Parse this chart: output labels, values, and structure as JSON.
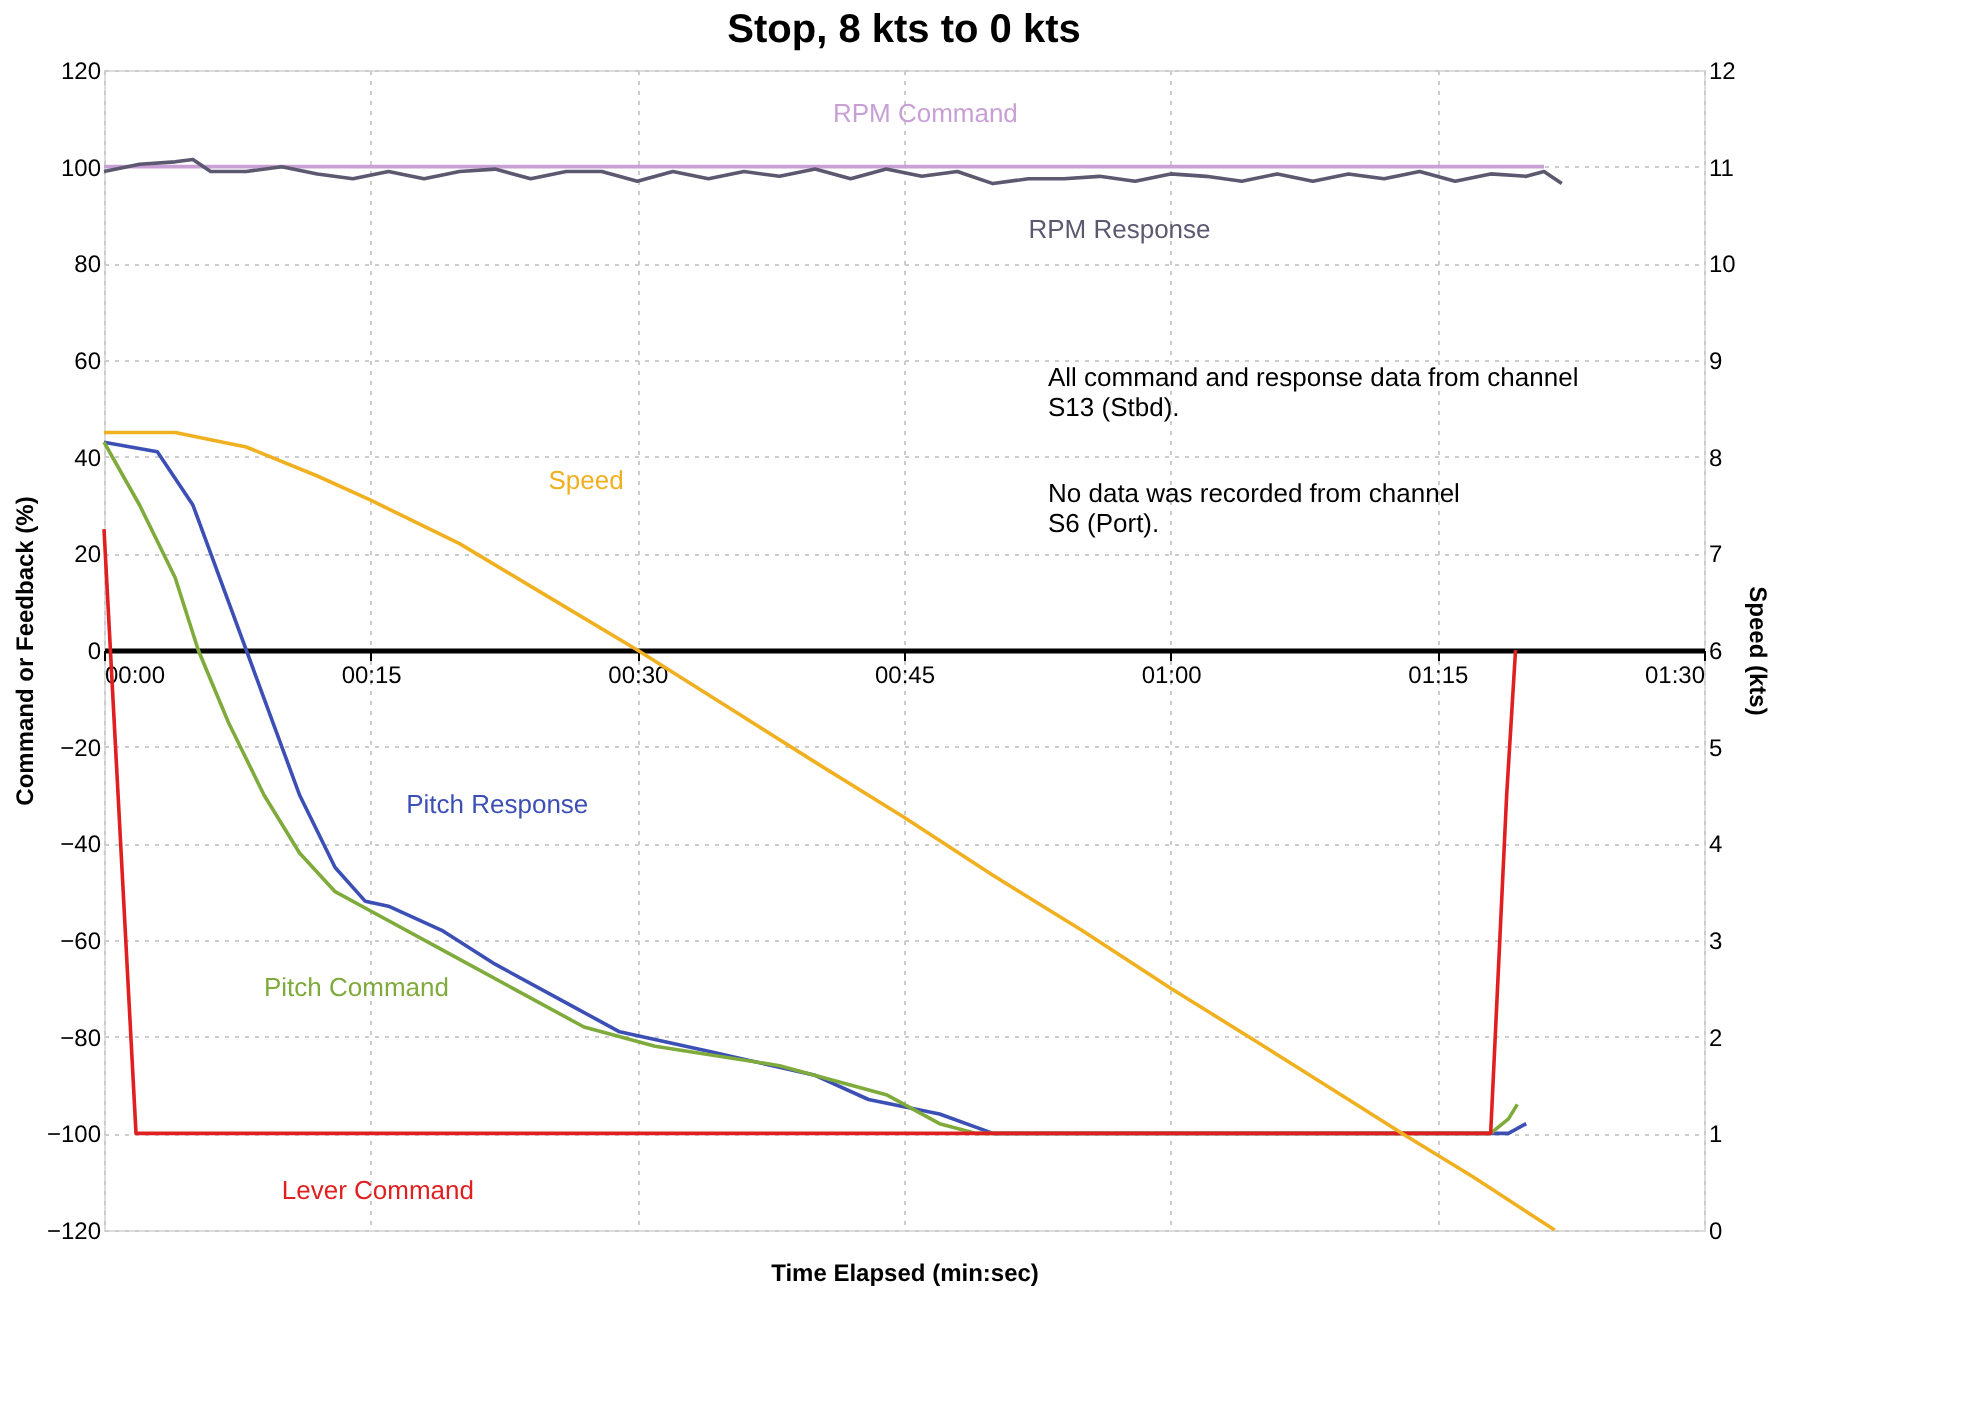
{
  "chart_data": {
    "type": "line",
    "title": "Stop, 8 kts to 0 kts",
    "xlabel": "Time Elapsed (min:sec)",
    "ylabel": "Command or Feedback (%)",
    "y2label": "Speed (kts)",
    "xlim": [
      0,
      90
    ],
    "xticks": [
      {
        "value": 0,
        "label": "00:00"
      },
      {
        "value": 15,
        "label": "00:15"
      },
      {
        "value": 30,
        "label": "00:30"
      },
      {
        "value": 45,
        "label": "00:45"
      },
      {
        "value": 60,
        "label": "01:00"
      },
      {
        "value": 75,
        "label": "01:15"
      },
      {
        "value": 90,
        "label": "01:30"
      }
    ],
    "ylim": [
      -120,
      120
    ],
    "yticks": [
      -120,
      -100,
      -80,
      -60,
      -40,
      -20,
      0,
      20,
      40,
      60,
      80,
      100,
      120
    ],
    "y2lim": [
      0,
      12
    ],
    "y2ticks": [
      0,
      1,
      2,
      3,
      4,
      5,
      6,
      7,
      8,
      9,
      10,
      11,
      12
    ],
    "grid": true,
    "legend": false,
    "marker": "none",
    "line_style": "solid",
    "annotations": [
      "All command and response data from channel\nS13 (Stbd).",
      "No data was recorded from channel\nS6 (Port)."
    ],
    "series": [
      {
        "name": "RPM Command",
        "color": "#c9a0d6",
        "x": [
          0,
          81
        ],
        "values": [
          100,
          100
        ]
      },
      {
        "name": "RPM Response",
        "color": "#5c5870",
        "x": [
          0,
          2,
          4,
          5,
          6,
          8,
          10,
          12,
          14,
          16,
          18,
          20,
          22,
          24,
          26,
          28,
          30,
          32,
          34,
          36,
          38,
          40,
          42,
          44,
          46,
          48,
          50,
          52,
          54,
          56,
          58,
          60,
          62,
          64,
          66,
          68,
          70,
          72,
          74,
          76,
          78,
          80,
          81,
          82
        ],
        "values": [
          99,
          100.5,
          101,
          101.5,
          99,
          99,
          100,
          98.5,
          97.5,
          99,
          97.5,
          99,
          99.5,
          97.5,
          99,
          99,
          97,
          99,
          97.5,
          99,
          98,
          99.5,
          97.5,
          99.5,
          98,
          99,
          96.5,
          97.5,
          97.5,
          98,
          97,
          98.5,
          98,
          97,
          98.5,
          97,
          98.5,
          97.5,
          99,
          97,
          98.5,
          98,
          99,
          96.5
        ]
      },
      {
        "name": "Speed",
        "color": "#f0b020",
        "axis": "y2",
        "x": [
          0,
          4,
          8,
          12,
          15,
          20,
          25,
          30,
          35,
          40,
          45,
          50,
          55,
          60,
          65,
          70,
          73,
          77,
          81.6
        ],
        "values": [
          8.25,
          8.25,
          8.1,
          7.8,
          7.55,
          7.1,
          6.55,
          6.0,
          5.42,
          4.84,
          4.27,
          3.67,
          3.1,
          2.5,
          1.93,
          1.35,
          1.0,
          0.55,
          0
        ]
      },
      {
        "name": "Pitch Response",
        "color": "#3c4fb5",
        "x": [
          0,
          3,
          5,
          7,
          9,
          11,
          13,
          14.7,
          16,
          19,
          22,
          26,
          29,
          34,
          40,
          43,
          47,
          50,
          79,
          80
        ],
        "values": [
          43,
          41,
          30,
          10,
          -10,
          -30,
          -45,
          -52,
          -53,
          -58,
          -65,
          -73,
          -79,
          -83,
          -88,
          -93,
          -96,
          -100,
          -100,
          -98
        ]
      },
      {
        "name": "Pitch Command",
        "color": "#7faa3c",
        "x": [
          0,
          2,
          4,
          5.3,
          7,
          9,
          11,
          13,
          15,
          19,
          23,
          27,
          31,
          38,
          44,
          47,
          49,
          78,
          79,
          79.5
        ],
        "values": [
          43,
          30,
          15,
          0,
          -15,
          -30,
          -42,
          -50,
          -54,
          -62,
          -70,
          -78,
          -82,
          -86,
          -92,
          -98,
          -100,
          -100,
          -97,
          -94
        ]
      },
      {
        "name": "Lever Command",
        "color": "#e02020",
        "x": [
          0,
          1.8,
          78,
          78.9,
          79.4
        ],
        "values": [
          25,
          -100,
          -100,
          -30,
          0
        ]
      }
    ]
  }
}
